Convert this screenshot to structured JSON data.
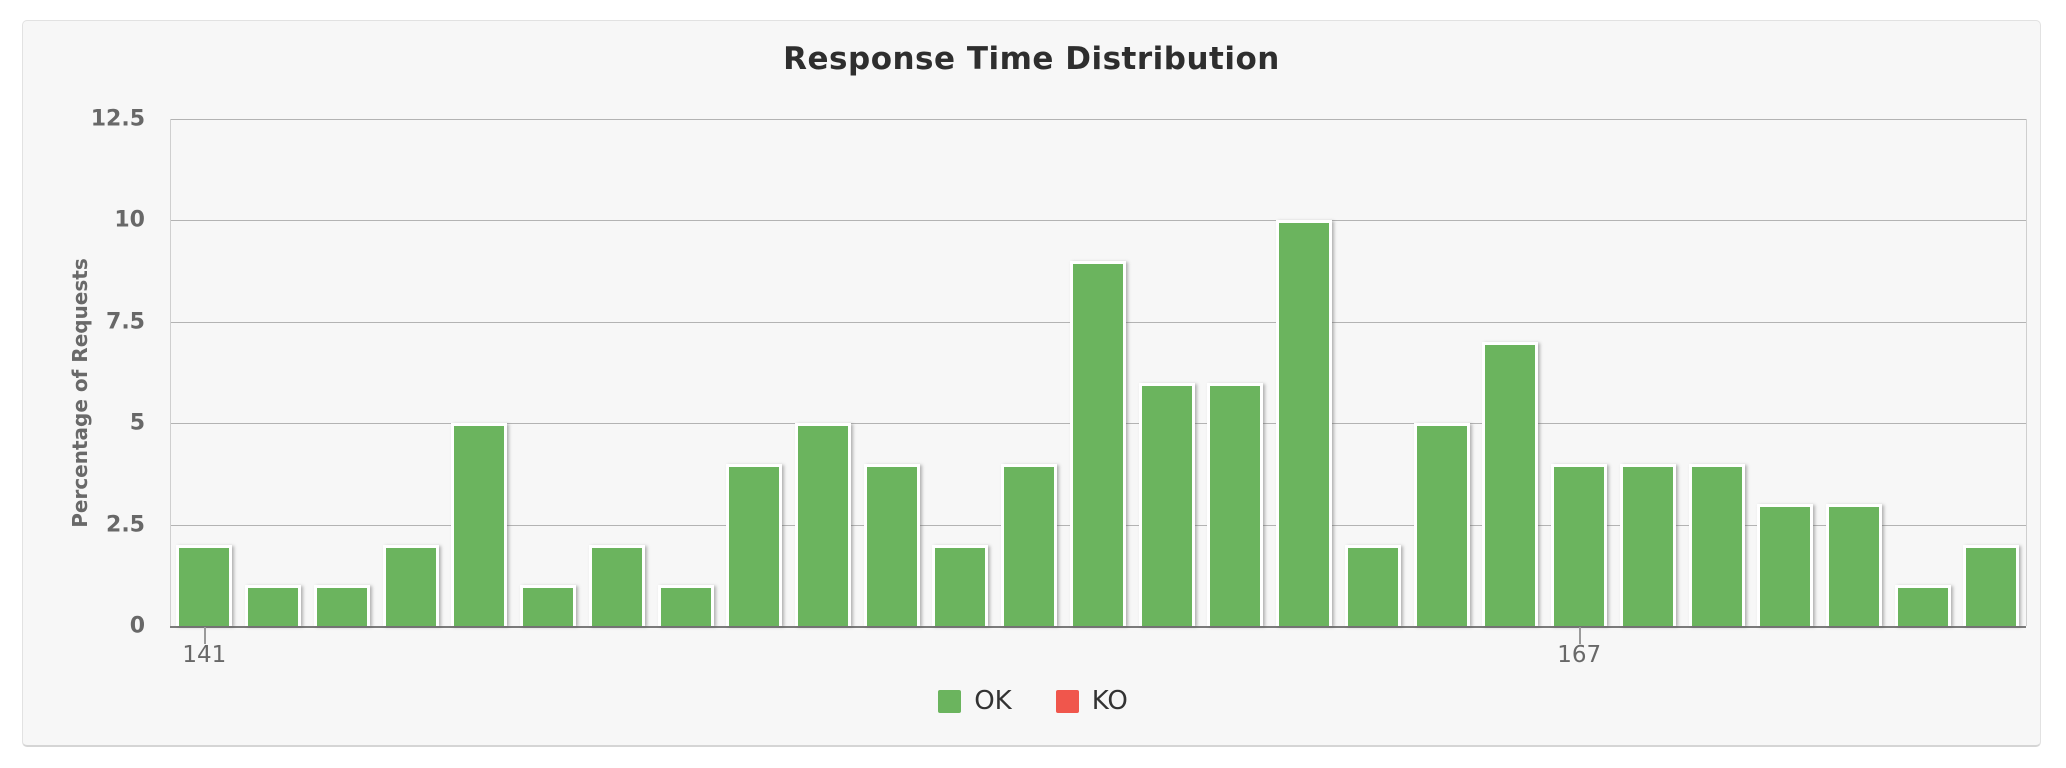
{
  "chart_data": {
    "type": "bar",
    "title": "Response Time Distribution",
    "xlabel": "",
    "ylabel": "Percentage of Requests",
    "values": [
      2,
      1,
      1,
      2,
      5,
      1,
      2,
      1,
      4,
      5,
      4,
      2,
      4,
      9,
      6,
      6,
      10,
      2,
      5,
      7,
      4,
      4,
      4,
      3,
      3,
      1,
      2
    ],
    "n_bars": 27,
    "yticks": [
      0,
      2.5,
      5,
      7.5,
      10,
      12.5
    ],
    "ylim": [
      0,
      12.5
    ],
    "xticks": [
      {
        "label": "141",
        "bar_index": 0
      },
      {
        "label": "167",
        "bar_index": 20
      }
    ],
    "grid": true,
    "legend_position": "bottom",
    "legend": [
      {
        "label": "OK",
        "color": "#6bb45e"
      },
      {
        "label": "KO",
        "color": "#f0564c"
      }
    ],
    "colors": {
      "bar_ok": "#6bb45e",
      "bar_ko": "#f0564c",
      "panel_background": "#f7f7f7",
      "gridline": "#b3b3b3",
      "axis_baseline": "#7b7b7b",
      "tick_text": "#686868",
      "title_text": "#2e2e2e"
    }
  }
}
